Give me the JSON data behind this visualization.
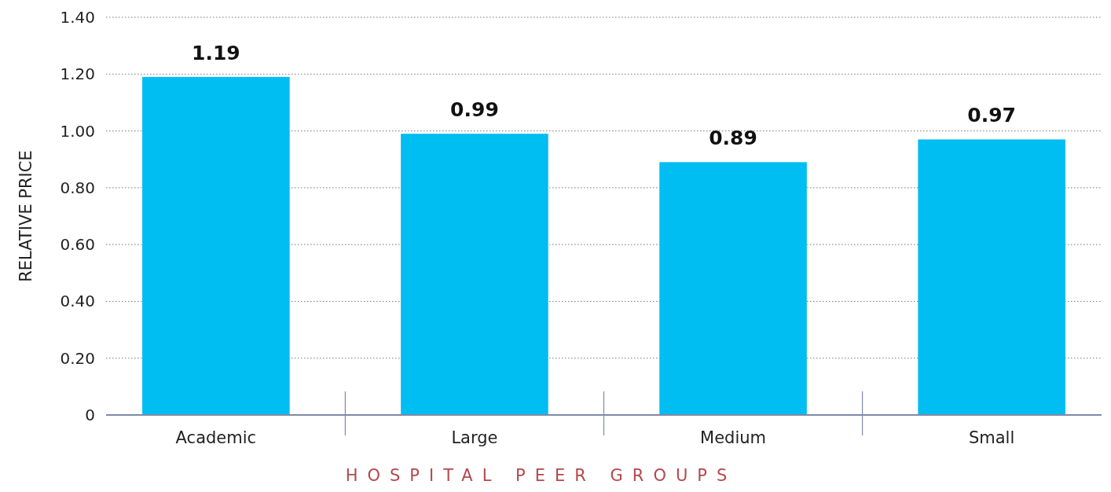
{
  "chart_data": {
    "type": "bar",
    "xlabel": "HOSPITAL PEER GROUPS",
    "ylabel": "RELATIVE PRICE",
    "categories": [
      "Academic",
      "Large",
      "Medium",
      "Small"
    ],
    "values": [
      1.19,
      0.99,
      0.89,
      0.97
    ],
    "color": "#00bdf2",
    "data_labels": true,
    "ylim": [
      0,
      1.4
    ],
    "yticks": [
      {
        "value": 0,
        "label": "0"
      },
      {
        "value": 0.2,
        "label": "0.20"
      },
      {
        "value": 0.4,
        "label": "0.40"
      },
      {
        "value": 0.6,
        "label": "0.60"
      },
      {
        "value": 0.8,
        "label": "0.80"
      },
      {
        "value": 1,
        "label": "1.00"
      },
      {
        "value": 1.2,
        "label": "1.20"
      },
      {
        "value": 1.4,
        "label": "1.40"
      }
    ],
    "grid": "y"
  }
}
